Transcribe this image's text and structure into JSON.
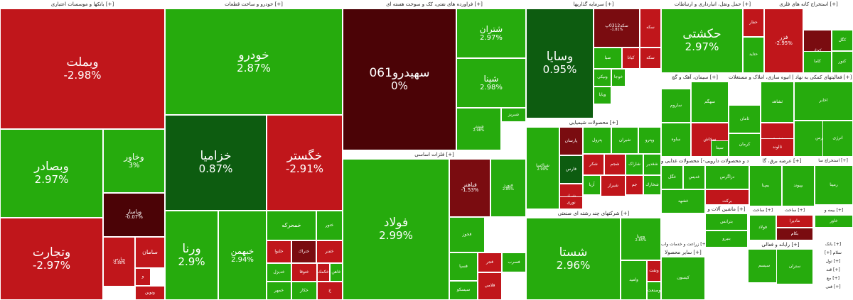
{
  "colors": {
    "red": "#c0161b",
    "dark_red": "#7a0c10",
    "darkest_red": "#4b0306",
    "green": "#26ab0d",
    "dark_green": "#0d5c10",
    "mid_green": "#1f8a17"
  },
  "sectors": [
    {
      "id": "banks",
      "title": "بانکها و موسسات اعتباری [+]",
      "tiles": [
        {
          "name": "وبملت",
          "pct": "-2.98%"
        },
        {
          "name": "وبصادر",
          "pct": "2.97%"
        },
        {
          "name": "وخاور",
          "pct": "3%"
        },
        {
          "name": "وپاسار",
          "pct": "-0.07%"
        },
        {
          "name": "وتجارت",
          "pct": "-2.97%"
        },
        {
          "name": "سامان",
          "pct": ""
        },
        {
          "name": "وپارس",
          "pct": "-2.98%"
        },
        {
          "name": "و",
          "pct": ""
        },
        {
          "name": "ونوین",
          "pct": ""
        }
      ]
    },
    {
      "id": "auto",
      "title": "خودرو و ساخت قطعات [+]",
      "tiles": [
        {
          "name": "خودرو",
          "pct": "2.87%"
        },
        {
          "name": "خزامیا",
          "pct": "0.87%"
        },
        {
          "name": "خگستر",
          "pct": "-2.91%"
        },
        {
          "name": "ورنا",
          "pct": "2.9%"
        },
        {
          "name": "خبهمن",
          "pct": "2.94%"
        },
        {
          "name": "خمحرکه",
          "pct": ""
        },
        {
          "name": "ختور",
          "pct": ""
        },
        {
          "name": "خلنوا",
          "pct": ""
        },
        {
          "name": "ختراك",
          "pct": ""
        },
        {
          "name": "خفنر",
          "pct": ""
        },
        {
          "name": "خديزل",
          "pct": ""
        },
        {
          "name": "خمهر",
          "pct": ""
        },
        {
          "name": "ختوقا",
          "pct": ""
        },
        {
          "name": "خكار",
          "pct": ""
        },
        {
          "name": "خكمك",
          "pct": ""
        },
        {
          "name": "خاهن",
          "pct": ""
        },
        {
          "name": "خ",
          "pct": ""
        }
      ]
    },
    {
      "id": "oil",
      "title": "فراورده های نفتی، کک و سوخت هسته ای [+]",
      "tiles": [
        {
          "name": "سهیدرو061",
          "pct": "0%"
        },
        {
          "name": "شتران",
          "pct": "2.97%"
        },
        {
          "name": "شپنا",
          "pct": "2.98%"
        },
        {
          "name": "شبریز",
          "pct": ""
        },
        {
          "name": "شبندر",
          "pct": "2.98%"
        }
      ]
    },
    {
      "id": "metals",
      "title": "فلزات اساسی [+]",
      "tiles": [
        {
          "name": "فولاد",
          "pct": "2.99%"
        },
        {
          "name": "فباهنر",
          "pct": "-1.53%"
        },
        {
          "name": "فنورد",
          "pct": "2.85%"
        },
        {
          "name": "فخوز",
          "pct": ""
        },
        {
          "name": "فسپا",
          "pct": ""
        },
        {
          "name": "فجر",
          "pct": ""
        },
        {
          "name": "فسرب",
          "pct": ""
        },
        {
          "name": "فلامي",
          "pct": ""
        },
        {
          "name": "سیسکو",
          "pct": ""
        }
      ]
    },
    {
      "id": "invest",
      "title": "سرمایه گذاریها [+]",
      "tiles": [
        {
          "name": "وسایا",
          "pct": "0.95%"
        },
        {
          "name": "سکه0312پ",
          "pct": "-1.81%"
        },
        {
          "name": "سکه",
          "pct": ""
        },
        {
          "name": "صبا",
          "pct": ""
        },
        {
          "name": "سکه",
          "pct": ""
        },
        {
          "name": "کیاتا",
          "pct": ""
        },
        {
          "name": "ونیکی",
          "pct": ""
        },
        {
          "name": "خوجا",
          "pct": ""
        },
        {
          "name": "ویایا",
          "pct": ""
        }
      ]
    },
    {
      "id": "chem",
      "title": "محصولات شیمیایی [+]",
      "tiles": [
        {
          "name": "شپاکسا",
          "pct": "2.99%"
        },
        {
          "name": "پارسان",
          "pct": ""
        },
        {
          "name": "فارس",
          "pct": ""
        },
        {
          "name": "شراز",
          "pct": ""
        },
        {
          "name": "پترول",
          "pct": ""
        },
        {
          "name": "شیران",
          "pct": ""
        },
        {
          "name": "وپترو",
          "pct": ""
        },
        {
          "name": "شکر",
          "pct": ""
        },
        {
          "name": "شجم",
          "pct": ""
        },
        {
          "name": "شاراک",
          "pct": ""
        },
        {
          "name": "آریا",
          "pct": ""
        },
        {
          "name": "شیراز",
          "pct": ""
        },
        {
          "name": "نوری",
          "pct": ""
        },
        {
          "name": "جم",
          "pct": ""
        },
        {
          "name": "شغدیر",
          "pct": ""
        },
        {
          "name": "شخارك",
          "pct": ""
        }
      ]
    },
    {
      "id": "multi",
      "title": "شرکتهای چند رشته ای صنعتی [+]",
      "tiles": [
        {
          "name": "شستا",
          "pct": "2.96%"
        },
        {
          "name": "وصنا",
          "pct": "2.85%"
        },
        {
          "name": "وامید",
          "pct": ""
        },
        {
          "name": "ونفت",
          "pct": ""
        },
        {
          "name": "وصنعت",
          "pct": ""
        },
        {
          "name": "ومعادن",
          "pct": ""
        }
      ]
    },
    {
      "id": "transport",
      "title": "حمل ونقل، انبارداری و ارتباطات [+]",
      "tiles": [
        {
          "name": "حکشتی",
          "pct": "2.97%"
        },
        {
          "name": "حفار",
          "pct": ""
        },
        {
          "name": "حتاید",
          "pct": ""
        }
      ]
    },
    {
      "id": "mining",
      "title": "استخراج کانه های فلزی [+]",
      "tiles": [
        {
          "name": "فزر",
          "pct": "-2.95%"
        },
        {
          "name": "کچاد",
          "pct": ""
        },
        {
          "name": "کگل",
          "pct": ""
        },
        {
          "name": "کنور",
          "pct": ""
        },
        {
          "name": "کاما",
          "pct": ""
        }
      ]
    },
    {
      "id": "cement",
      "title": "سیمان، آهک و گچ [+]",
      "tiles": [
        {
          "name": "سهگم",
          "pct": ""
        },
        {
          "name": "ساوه",
          "pct": ""
        },
        {
          "name": "ساروم",
          "pct": ""
        },
        {
          "name": "سخاش",
          "pct": ""
        },
        {
          "name": "سیتا",
          "pct": ""
        }
      ]
    },
    {
      "id": "realestate",
      "title": "انبوه سازی، املاک و مستغلات [+]",
      "tiles": [
        {
          "name": "ثشاهد",
          "pct": ""
        },
        {
          "name": "ثامان",
          "pct": ""
        },
        {
          "name": "ثشرق",
          "pct": ""
        },
        {
          "name": "کرمان",
          "pct": ""
        },
        {
          "name": "ثالوند",
          "pct": ""
        }
      ]
    },
    {
      "id": "support",
      "title": "فعالیتهای کمکی به نهاد [+]",
      "tiles": [
        {
          "name": "اخابر",
          "pct": ""
        },
        {
          "name": "فرابورس",
          "pct": ""
        },
        {
          "name": "انرژی",
          "pct": ""
        }
      ]
    },
    {
      "id": "food",
      "title": "محصولات غذایی و [+]",
      "tiles": [
        {
          "name": "غگل",
          "pct": ""
        },
        {
          "name": "غدیس",
          "pct": ""
        },
        {
          "name": "غشهد",
          "pct": ""
        }
      ]
    },
    {
      "id": "pharma",
      "title": "مواد و محصولات دارویی [+]",
      "tiles": [
        {
          "name": "دزاگرس",
          "pct": ""
        },
        {
          "name": "برکت",
          "pct": ""
        }
      ]
    },
    {
      "id": "electric",
      "title": "عرضه برق، گا [+]",
      "tiles": [
        {
          "name": "بمپنا",
          "pct": ""
        },
        {
          "name": "بپیوند",
          "pct": ""
        }
      ]
    },
    {
      "id": "machinery",
      "title": "ماشین آلات و [+]",
      "tiles": [
        {
          "name": "بترانس",
          "pct": ""
        },
        {
          "name": "بنیرو",
          "pct": ""
        }
      ]
    },
    {
      "id": "other",
      "title": "سایر محصولا [+]",
      "tiles": [
        {
          "name": "کیسون",
          "pct": ""
        }
      ]
    },
    {
      "id": "software",
      "title": "رایانه و فعالی [+]",
      "tiles": [
        {
          "name": "سیسم",
          "pct": ""
        },
        {
          "name": "رتاپ",
          "pct": ""
        }
      ]
    }
  ],
  "small_headers": [
    "استخراج سا [+]",
    "ساخت [+]",
    "ساخت [+]",
    "بیمه و [+]",
    "زراعت و خدمات واب [+]",
    "بانک [+]",
    "[+] سلام",
    "تول [+]",
    "قند [+]",
    "مع [+]",
    "فنی [+]"
  ],
  "small_tiles": [
    "رمپنا",
    "ماديرا",
    "خاور",
    "بكام",
    "فولاد",
    "ستران"
  ]
}
